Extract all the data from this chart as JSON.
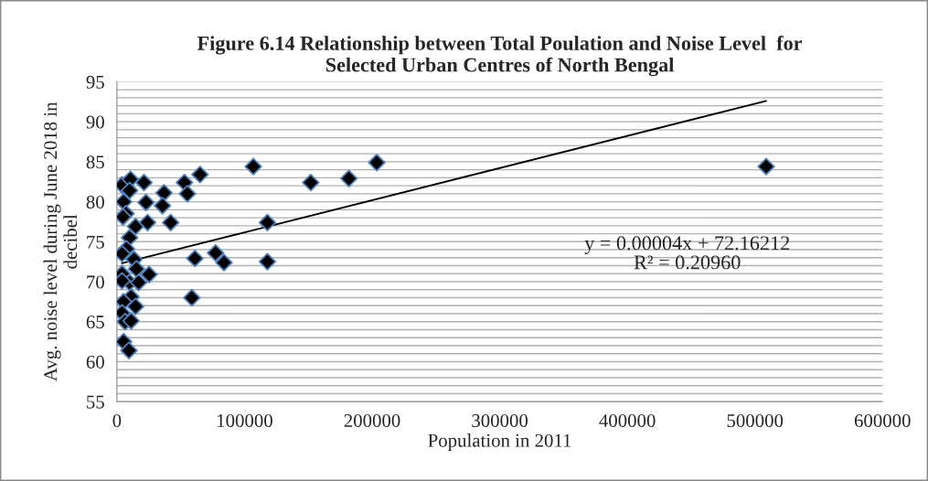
{
  "chart_data": {
    "type": "scatter",
    "title": "Figure 6.14 Relationship between Total Poulation and Noise Level  for\nSelected Urban Centres of North Bengal",
    "xlabel": "Population in 2011",
    "ylabel": "Avg. noise level during June 2018 in\ndecibel",
    "annotations": [
      "y = 0.00004x + 72.16212",
      "R² = 0.20960"
    ],
    "series": [
      {
        "color": "#000000",
        "marker": "diamond",
        "x": [
          4000,
          10600,
          21200,
          9900,
          5200,
          22800,
          36900,
          35700,
          52900,
          55200,
          65100,
          7100,
          4700,
          14600,
          24000,
          42100,
          9900,
          7500,
          4000,
          13400,
          61100,
          77300,
          83900,
          4000,
          15300,
          25200,
          9900,
          4000,
          17000,
          11100,
          58700,
          5200,
          14600,
          4000,
          6400,
          11100,
          5200,
          9400,
          106900,
          151900,
          181800,
          203600,
          117900,
          117900,
          508800
        ],
        "values": [
          82.1,
          82.8,
          82.4,
          81.4,
          80.0,
          79.9,
          81.1,
          79.5,
          82.4,
          81.0,
          83.4,
          78.5,
          78.1,
          76.9,
          77.4,
          77.4,
          75.5,
          74.1,
          73.5,
          72.8,
          72.9,
          73.6,
          72.4,
          71.0,
          71.6,
          70.9,
          69.9,
          70.1,
          69.9,
          68.1,
          68.0,
          67.5,
          66.9,
          66.1,
          65.0,
          65.1,
          62.5,
          61.4,
          84.4,
          82.4,
          82.9,
          84.9,
          77.4,
          72.5,
          84.4
        ]
      },
      {
        "type": "line",
        "color": "#000000",
        "marker": "none",
        "line_style": "solid",
        "x": [
          3900,
          508800
        ],
        "values": [
          72.3,
          92.6
        ]
      }
    ],
    "xlim": [
      0,
      600000
    ],
    "xticks": [
      0,
      100000,
      200000,
      300000,
      400000,
      500000,
      600000
    ],
    "ylim": [
      55,
      95
    ],
    "yticks": [
      55,
      {
        "value": 56,
        "label": null
      },
      {
        "value": 57,
        "label": null
      },
      {
        "value": 58,
        "label": null
      },
      {
        "value": 59,
        "label": null
      },
      60,
      {
        "value": 61,
        "label": null
      },
      {
        "value": 62,
        "label": null
      },
      {
        "value": 63,
        "label": null
      },
      {
        "value": 64,
        "label": null
      },
      65,
      {
        "value": 66,
        "label": null
      },
      {
        "value": 67,
        "label": null
      },
      {
        "value": 68,
        "label": null
      },
      {
        "value": 69,
        "label": null
      },
      70,
      {
        "value": 71,
        "label": null
      },
      {
        "value": 72,
        "label": null
      },
      {
        "value": 73,
        "label": null
      },
      {
        "value": 74,
        "label": null
      },
      75,
      {
        "value": 76,
        "label": null
      },
      {
        "value": 77,
        "label": null
      },
      {
        "value": 78,
        "label": null
      },
      {
        "value": 79,
        "label": null
      },
      80,
      {
        "value": 81,
        "label": null
      },
      {
        "value": 82,
        "label": null
      },
      {
        "value": 83,
        "label": null
      },
      {
        "value": 84,
        "label": null
      },
      85,
      {
        "value": 86,
        "label": null
      },
      {
        "value": 87,
        "label": null
      },
      {
        "value": 88,
        "label": null
      },
      {
        "value": 89,
        "label": null
      },
      90,
      {
        "value": 91,
        "label": null
      },
      {
        "value": 92,
        "label": null
      },
      {
        "value": 93,
        "label": null
      },
      {
        "value": 94,
        "label": null
      },
      95
    ],
    "grid": "y",
    "legend": false
  }
}
